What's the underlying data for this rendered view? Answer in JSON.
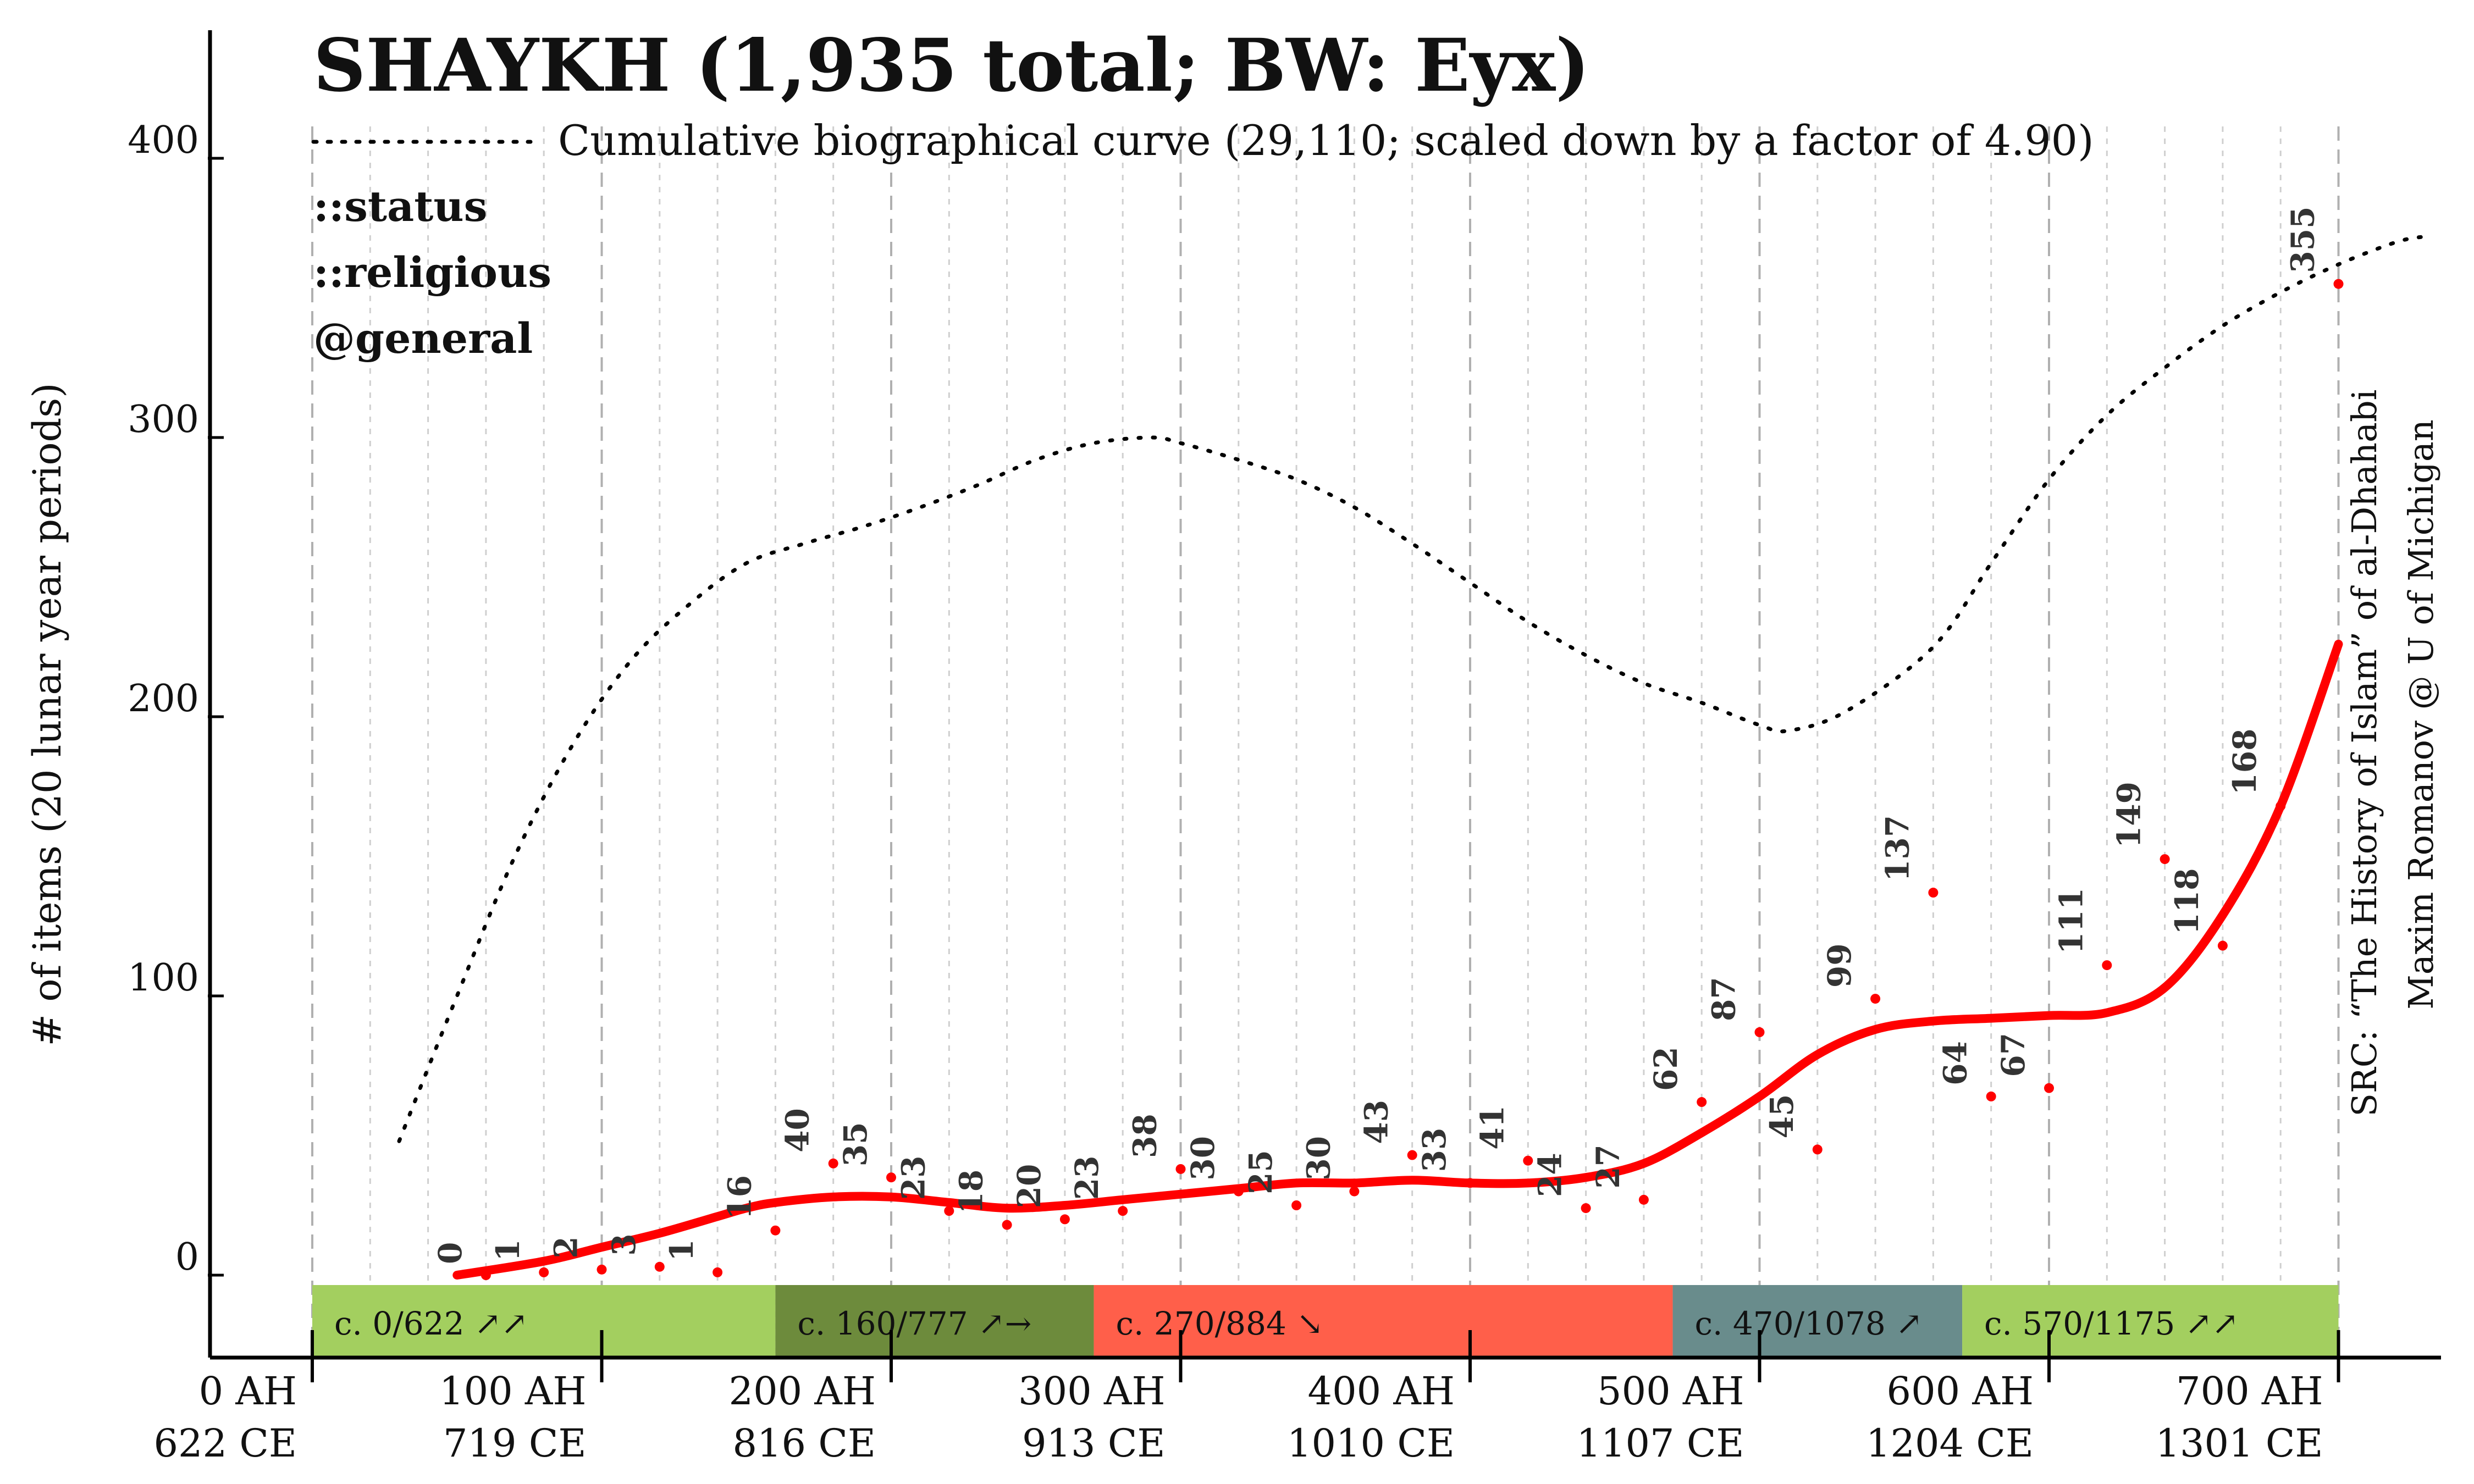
{
  "chart_data": {
    "type": "line",
    "title": "SHAYKH (1,935 total; BW: Eyx)",
    "legend": {
      "dotted_label": "Cumulative biographical curve (29,110; scaled down by a factor of 4.90)"
    },
    "tags": [
      "::status",
      "::religious",
      "@general"
    ],
    "ylabel": "# of items (20 lunar year periods)",
    "ylim": [
      -40,
      445
    ],
    "xlim": [
      -30,
      740
    ],
    "y_ticks": [
      "0",
      "100",
      "200",
      "300",
      "400"
    ],
    "x_ticks": [
      {
        "ah": "0 AH",
        "ce": "622 CE"
      },
      {
        "ah": "100 AH",
        "ce": "719 CE"
      },
      {
        "ah": "200 AH",
        "ce": "816 CE"
      },
      {
        "ah": "300 AH",
        "ce": "913 CE"
      },
      {
        "ah": "400 AH",
        "ce": "1010 CE"
      },
      {
        "ah": "500 AH",
        "ce": "1107 CE"
      },
      {
        "ah": "600 AH",
        "ce": "1204 CE"
      },
      {
        "ah": "700 AH",
        "ce": "1301 CE"
      }
    ],
    "grid": "vertical dashed every 20 AH",
    "points": {
      "x": [
        60,
        80,
        100,
        120,
        140,
        160,
        180,
        200,
        220,
        240,
        260,
        280,
        300,
        320,
        340,
        360,
        380,
        400,
        420,
        440,
        460,
        480,
        500,
        520,
        540,
        560,
        580,
        600,
        620,
        640,
        660,
        680,
        700,
        720
      ],
      "values": [
        0,
        1,
        2,
        3,
        1,
        16,
        40,
        35,
        23,
        18,
        20,
        23,
        38,
        30,
        25,
        30,
        43,
        33,
        41,
        24,
        27,
        62,
        87,
        45,
        99,
        137,
        64,
        67,
        111,
        149,
        118,
        168,
        355,
        null
      ],
      "labels": [
        "0",
        "1",
        "2",
        "3",
        "1",
        "16",
        "40",
        "35",
        "23",
        "18",
        "20",
        "23",
        "38",
        "30",
        "25",
        "30",
        "43",
        "33",
        "41",
        "24",
        "27",
        "62",
        "87",
        "45",
        "99",
        "137",
        "64",
        "67",
        "111",
        "149",
        "118",
        "168",
        "355",
        ""
      ]
    },
    "series": [
      {
        "name": "",
        "style": "smoothed trend",
        "color": "#ff0000",
        "x": [
          50,
          80,
          100,
          120,
          140,
          150,
          160,
          180,
          200,
          220,
          240,
          260,
          280,
          300,
          320,
          340,
          360,
          380,
          400,
          420,
          440,
          460,
          480,
          500,
          520,
          540,
          560,
          580,
          600,
          620,
          640,
          660,
          680,
          700
        ],
        "y": [
          0,
          5,
          10,
          15,
          21,
          24,
          26,
          28,
          28,
          26,
          24,
          25,
          27,
          29,
          31,
          33,
          33,
          34,
          33,
          33,
          35,
          40,
          51,
          64,
          79,
          88,
          91,
          92,
          93,
          94,
          103,
          129,
          168,
          226
        ]
      },
      {
        "name": "Cumulative biographical curve (29,110; scaled down by a factor of 4.90)",
        "style": "dotted",
        "color": "#000000",
        "x": [
          30,
          50,
          70,
          90,
          110,
          130,
          150,
          170,
          190,
          210,
          230,
          250,
          270,
          290,
          300,
          320,
          340,
          360,
          380,
          400,
          420,
          440,
          460,
          480,
          500,
          510,
          530,
          560,
          580,
          600,
          620,
          640,
          660,
          680,
          700,
          720,
          730
        ],
        "y": [
          48,
          100,
          150,
          190,
          220,
          240,
          255,
          262,
          268,
          275,
          283,
          292,
          298,
          300,
          298,
          292,
          285,
          275,
          262,
          248,
          234,
          222,
          212,
          205,
          197,
          195,
          202,
          225,
          255,
          285,
          308,
          325,
          340,
          352,
          362,
          370,
          372
        ]
      }
    ],
    "periods": [
      {
        "label": "c. 0/622 ↗↗",
        "start": 0,
        "end": 160,
        "color": "#a3cf5f"
      },
      {
        "label": "c. 160/777 ↗→",
        "start": 160,
        "end": 270,
        "color": "#6d8b3c"
      },
      {
        "label": "c. 270/884 ↘",
        "start": 270,
        "end": 470,
        "color": "#ff5f4a"
      },
      {
        "label": "c. 470/1078 ↗",
        "start": 470,
        "end": 570,
        "color": "#698c8c"
      },
      {
        "label": "c. 570/1175 ↗↗",
        "start": 570,
        "end": 700,
        "color": "#a3cf5f"
      }
    ],
    "source": [
      "SRC: “The History of Islam” of al-Dhahabi",
      "Maxim Romanov @ U of Michigan"
    ],
    "colors": {
      "trend": "#ff0000",
      "points": "#ff0000",
      "axis": "#000000",
      "grid": "#bbbbbb"
    }
  }
}
